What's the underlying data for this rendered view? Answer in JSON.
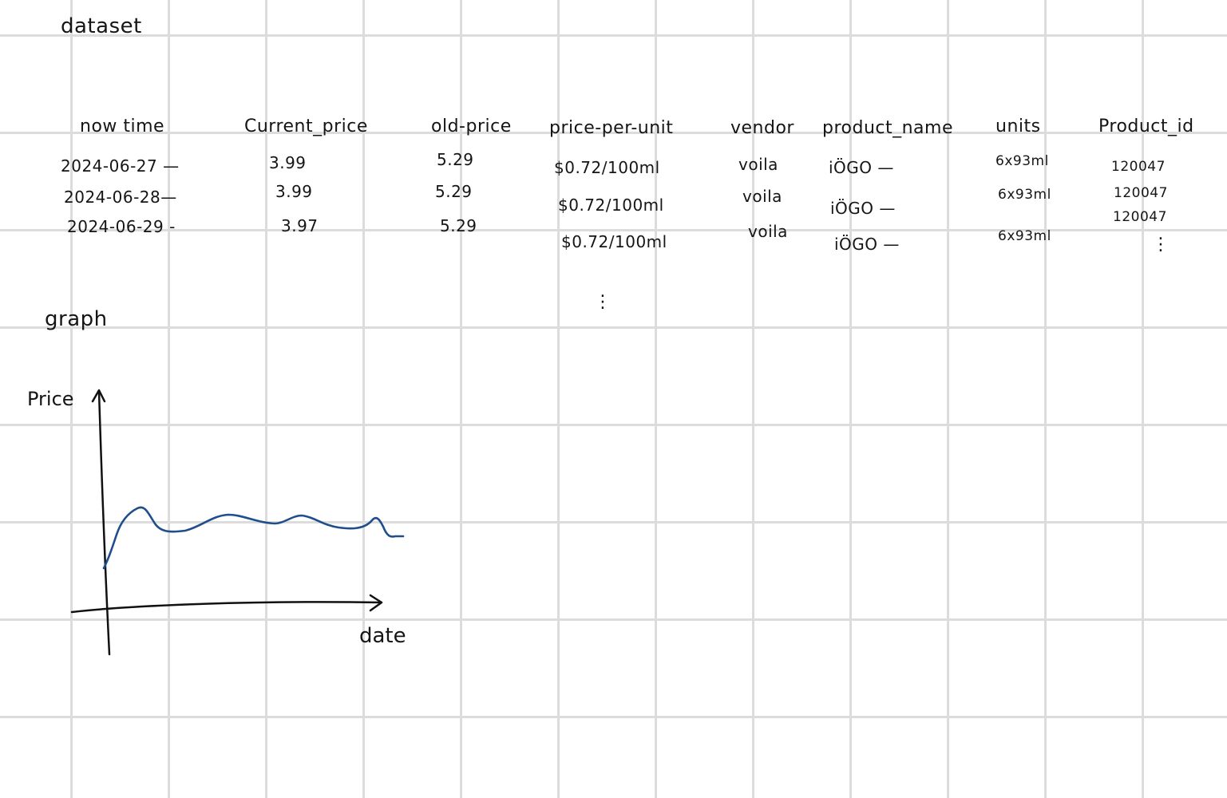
{
  "sections": {
    "dataset_title": "dataset",
    "graph_title": "graph"
  },
  "table": {
    "columns": [
      "now time",
      "Current_price",
      "old-price",
      "price-per-unit",
      "vendor",
      "product_name",
      "units",
      "Product_id"
    ],
    "rows": [
      [
        "2024-06-27 —",
        "3.99",
        "5.29",
        "$0.72/100ml",
        "voila",
        "iÖGO —",
        "6x93ml",
        "120047"
      ],
      [
        "2024-06-28—",
        "3.99",
        "5.29",
        "$0.72/100ml",
        "voila",
        "iÖGO —",
        "6x93ml",
        "120047"
      ],
      [
        "2024-06-29 -",
        "3.97",
        "5.29",
        "$0.72/100ml",
        "voila",
        "iÖGO —",
        "6x93ml",
        "120047"
      ]
    ],
    "continuation_mark": "⋮"
  },
  "chart_data": {
    "type": "line",
    "ylabel": "Price",
    "xlabel": "date",
    "series_color": "#1f4e8c",
    "grid": false
  }
}
